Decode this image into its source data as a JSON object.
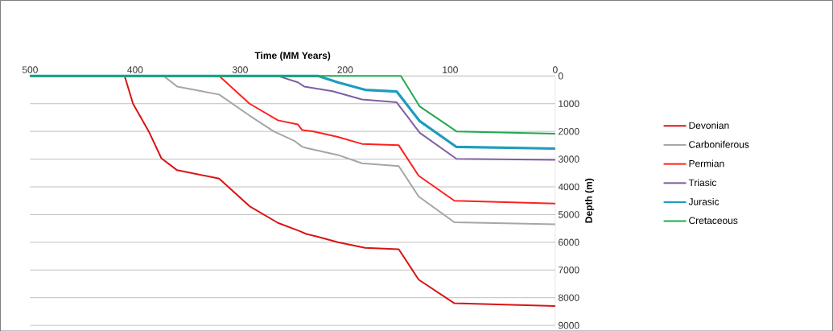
{
  "chart_data": {
    "type": "line",
    "xlabel": "Time (MM Years)",
    "ylabel": "Depth (m)",
    "xlim": [
      500,
      0
    ],
    "xticks": [
      500,
      400,
      300,
      200,
      100,
      0
    ],
    "ylim": [
      9000,
      0
    ],
    "yticks": [
      0,
      1000,
      2000,
      3000,
      4000,
      5000,
      6000,
      7000,
      8000,
      9000
    ],
    "grid": "y",
    "legend": "right",
    "marker": "none",
    "line_style": "solid",
    "series": [
      {
        "name": "Devonian",
        "color": "#d81414",
        "x": [
          500,
          410,
          402,
          387,
          375,
          360,
          320,
          291,
          264,
          243,
          237,
          226,
          207,
          181,
          149,
          130,
          96,
          0
        ],
        "values": [
          0,
          0,
          1000,
          2000,
          2970,
          3400,
          3700,
          4700,
          5300,
          5600,
          5700,
          5800,
          6000,
          6200,
          6250,
          7350,
          8200,
          8300
        ]
      },
      {
        "name": "Carboniferous",
        "color": "#a6a6a6",
        "x": [
          500,
          373,
          360,
          320,
          291,
          268,
          248,
          241,
          237,
          207,
          184,
          149,
          130,
          96,
          0
        ],
        "values": [
          0,
          0,
          380,
          670,
          1430,
          2000,
          2350,
          2550,
          2600,
          2850,
          3150,
          3250,
          4350,
          5280,
          5350
        ]
      },
      {
        "name": "Permian",
        "color": "#ff2020",
        "x": [
          500,
          320,
          291,
          264,
          245,
          241,
          230,
          207,
          184,
          149,
          130,
          96,
          0
        ],
        "values": [
          0,
          0,
          1000,
          1600,
          1750,
          1950,
          2000,
          2200,
          2450,
          2500,
          3600,
          4500,
          4600
        ]
      },
      {
        "name": "Triasic",
        "color": "#7f5fa0",
        "x": [
          500,
          264,
          245,
          239,
          212,
          184,
          151,
          129,
          94,
          0
        ],
        "values": [
          0,
          0,
          230,
          380,
          550,
          850,
          950,
          2050,
          2990,
          3030
        ]
      },
      {
        "name": "Jurasic",
        "color": "#1f9cbd",
        "x": [
          500,
          226,
          207,
          181,
          151,
          129,
          94,
          0
        ],
        "values": [
          0,
          0,
          230,
          500,
          560,
          1630,
          2560,
          2620
        ]
      },
      {
        "name": "Cretaceous",
        "color": "#1faa4f",
        "x": [
          500,
          147,
          129,
          94,
          0
        ],
        "values": [
          0,
          0,
          1100,
          2000,
          2080
        ]
      }
    ]
  }
}
